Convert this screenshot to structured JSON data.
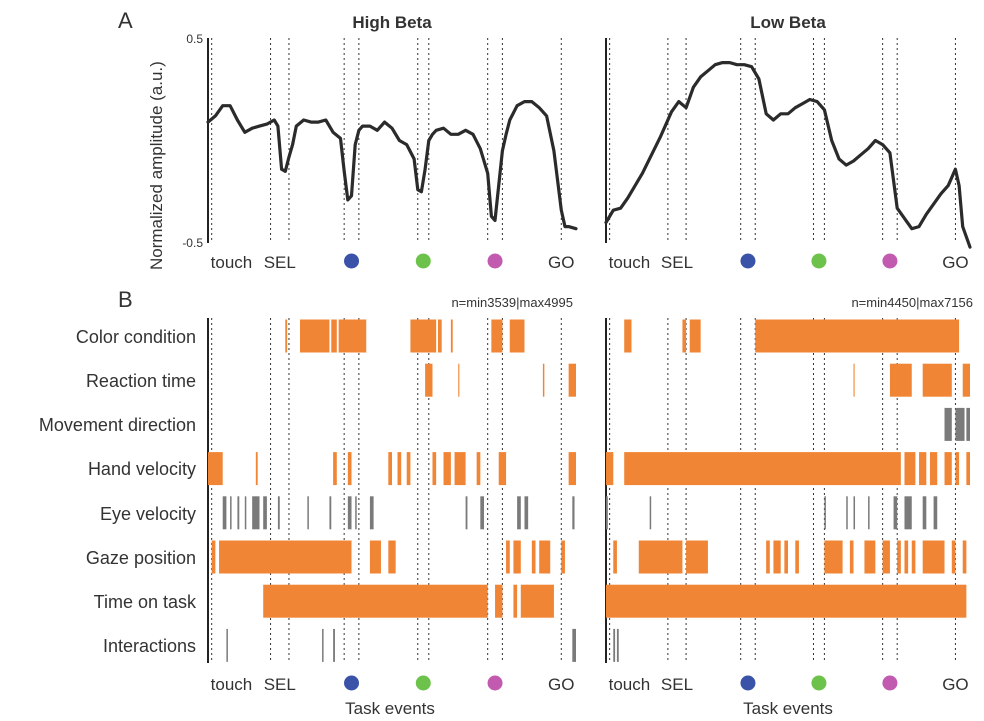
{
  "panel_a": {
    "letter": "A",
    "y_label": "Normalized amplitude (a.u.)",
    "y_ticks": [
      "0.5",
      "-0.5"
    ]
  },
  "panel_b": {
    "letter": "B",
    "x_label_left": "Task events",
    "x_label_right": "Task events"
  },
  "event_labels": [
    "touch",
    "SEL",
    "",
    "",
    "",
    "GO"
  ],
  "event_marker_colors": [
    "#3a52a8",
    "#6cc24a",
    "#c25bb0"
  ],
  "colors": {
    "line": "#2b2b2b",
    "significant": "#f08536",
    "gray": "#7a7a7a",
    "axis": "#222222",
    "guide": "#333333"
  },
  "chart_data": [
    {
      "type": "line",
      "title": "High Beta",
      "xlabel": "",
      "ylabel": "Normalized amplitude (a.u.)",
      "xlim": [
        0,
        100
      ],
      "ylim": [
        -0.5,
        0.5
      ],
      "event_lines": [
        1,
        17,
        22,
        37,
        41,
        57,
        60,
        76,
        80,
        96
      ],
      "x": [
        0,
        2,
        4,
        6,
        8,
        10,
        12,
        14,
        16,
        18,
        19,
        20,
        21,
        22,
        23,
        24,
        26,
        28,
        30,
        32,
        34,
        36,
        37,
        38,
        39,
        40,
        41,
        42,
        44,
        46,
        48,
        50,
        52,
        54,
        56,
        57,
        58,
        59,
        60,
        61,
        62,
        64,
        66,
        68,
        70,
        72,
        74,
        76,
        77,
        78,
        79,
        80,
        81,
        82,
        84,
        86,
        88,
        90,
        92,
        94,
        96,
        97,
        98,
        100
      ],
      "y": [
        0.09,
        0.12,
        0.17,
        0.17,
        0.1,
        0.04,
        0.06,
        0.07,
        0.08,
        0.1,
        0.07,
        -0.14,
        -0.15,
        -0.08,
        -0.02,
        0.07,
        0.1,
        0.09,
        0.09,
        0.1,
        0.04,
        0.01,
        -0.15,
        -0.29,
        -0.27,
        -0.02,
        0.05,
        0.07,
        0.07,
        0.05,
        0.09,
        0.06,
        0.0,
        -0.02,
        -0.09,
        -0.24,
        -0.25,
        -0.14,
        0.0,
        0.03,
        0.05,
        0.06,
        0.03,
        0.03,
        0.05,
        0.03,
        -0.04,
        -0.16,
        -0.37,
        -0.39,
        -0.22,
        -0.05,
        0.03,
        0.1,
        0.17,
        0.19,
        0.19,
        0.16,
        0.12,
        -0.05,
        -0.34,
        -0.42,
        -0.42,
        -0.43
      ]
    },
    {
      "type": "line",
      "title": "Low Beta",
      "xlabel": "",
      "ylabel": "",
      "xlim": [
        0,
        100
      ],
      "ylim": [
        -0.5,
        0.5
      ],
      "event_lines": [
        1,
        17,
        22,
        37,
        41,
        57,
        60,
        76,
        80,
        96
      ],
      "x": [
        0,
        2,
        4,
        6,
        10,
        15,
        18,
        20,
        22,
        24,
        26,
        28,
        30,
        32,
        34,
        36,
        38,
        40,
        42,
        44,
        46,
        48,
        50,
        52,
        54,
        56,
        58,
        60,
        62,
        64,
        66,
        68,
        70,
        72,
        74,
        76,
        78,
        80,
        82,
        84,
        86,
        88,
        90,
        92,
        94,
        96,
        97,
        98,
        100
      ],
      "y": [
        -0.4,
        -0.34,
        -0.33,
        -0.28,
        -0.16,
        0.02,
        0.14,
        0.19,
        0.16,
        0.26,
        0.31,
        0.34,
        0.37,
        0.38,
        0.38,
        0.37,
        0.37,
        0.36,
        0.3,
        0.13,
        0.1,
        0.13,
        0.13,
        0.16,
        0.18,
        0.2,
        0.19,
        0.15,
        0.0,
        -0.09,
        -0.12,
        -0.1,
        -0.07,
        -0.04,
        0.0,
        -0.02,
        -0.06,
        -0.33,
        -0.38,
        -0.43,
        -0.42,
        -0.36,
        -0.31,
        -0.26,
        -0.22,
        -0.14,
        -0.22,
        -0.42,
        -0.52
      ]
    },
    {
      "type": "raster",
      "title": "",
      "annotation": "n=min3539|max4995",
      "xlim": [
        0,
        100
      ],
      "xlabel": "Task events",
      "event_lines": [
        1,
        17,
        22,
        37,
        41,
        57,
        60,
        76,
        80,
        96
      ],
      "rows": [
        {
          "label": "Color condition",
          "orange": [
            [
              21,
              21.5
            ],
            [
              25,
              33
            ],
            [
              33.5,
              35
            ],
            [
              35.5,
              43
            ],
            [
              55,
              62
            ],
            [
              62.5,
              63.5
            ],
            [
              66,
              66.5
            ],
            [
              77,
              80
            ],
            [
              82,
              86
            ]
          ],
          "gray": []
        },
        {
          "label": "Reaction time",
          "orange": [
            [
              59,
              61
            ],
            [
              68,
              68.3
            ],
            [
              91,
              91.4
            ],
            [
              98,
              100
            ]
          ],
          "gray": []
        },
        {
          "label": "Movement direction",
          "orange": [],
          "gray": []
        },
        {
          "label": "Hand velocity",
          "orange": [
            [
              0,
              4
            ],
            [
              13,
              13.5
            ],
            [
              34,
              35
            ],
            [
              38,
              39
            ],
            [
              49,
              50
            ],
            [
              51.5,
              52.5
            ],
            [
              54,
              55
            ],
            [
              61,
              62
            ],
            [
              64,
              66
            ],
            [
              67,
              70
            ],
            [
              73,
              74
            ],
            [
              79,
              81
            ],
            [
              98,
              100
            ]
          ],
          "gray": []
        },
        {
          "label": "Eye velocity",
          "orange": [],
          "gray": [
            [
              4,
              5
            ],
            [
              6,
              6.4
            ],
            [
              8,
              8.5
            ],
            [
              10,
              10.4
            ],
            [
              12,
              14
            ],
            [
              15,
              16
            ],
            [
              19,
              19.5
            ],
            [
              27,
              27.4
            ],
            [
              33,
              33.5
            ],
            [
              38,
              39
            ],
            [
              40,
              40.4
            ],
            [
              44,
              45
            ],
            [
              70,
              70.5
            ],
            [
              74,
              75
            ],
            [
              84,
              85
            ],
            [
              86,
              87
            ],
            [
              99,
              99.6
            ]
          ]
        },
        {
          "label": "Gaze position",
          "orange": [
            [
              1,
              2
            ],
            [
              3,
              39
            ],
            [
              44,
              47
            ],
            [
              49,
              51
            ],
            [
              81,
              82
            ],
            [
              83,
              85
            ],
            [
              88,
              89
            ],
            [
              90,
              93
            ],
            [
              96,
              97
            ]
          ],
          "gray": []
        },
        {
          "label": "Time on task",
          "orange": [
            [
              15,
              76
            ],
            [
              78,
              80
            ],
            [
              83,
              84
            ],
            [
              85,
              94
            ]
          ],
          "gray": []
        },
        {
          "label": "Interactions",
          "orange": [],
          "gray": [
            [
              5,
              5.4
            ],
            [
              31,
              31.4
            ],
            [
              34,
              34.5
            ],
            [
              99,
              100
            ]
          ]
        }
      ]
    },
    {
      "type": "raster",
      "title": "",
      "annotation": "n=min4450|max7156",
      "xlim": [
        0,
        100
      ],
      "xlabel": "Task events",
      "event_lines": [
        1,
        17,
        22,
        37,
        41,
        57,
        60,
        76,
        80,
        96
      ],
      "rows": [
        {
          "label": "Color condition",
          "orange": [
            [
              5,
              7
            ],
            [
              21,
              22
            ],
            [
              23,
              26
            ],
            [
              41,
              97
            ]
          ],
          "gray": []
        },
        {
          "label": "Reaction time",
          "orange": [
            [
              68,
              68.3
            ],
            [
              78,
              84
            ],
            [
              87,
              95
            ],
            [
              98,
              100
            ]
          ],
          "gray": []
        },
        {
          "label": "Movement direction",
          "orange": [],
          "gray": [
            [
              93,
              95
            ],
            [
              96,
              98.5
            ],
            [
              99,
              100
            ]
          ]
        },
        {
          "label": "Hand velocity",
          "orange": [
            [
              0,
              2
            ],
            [
              5,
              81
            ],
            [
              82,
              85
            ],
            [
              86,
              88
            ],
            [
              89,
              91
            ],
            [
              93,
              95
            ],
            [
              96,
              97
            ],
            [
              99,
              100
            ]
          ],
          "gray": []
        },
        {
          "label": "Eye velocity",
          "orange": [],
          "gray": [
            [
              0,
              0.5
            ],
            [
              12,
              12.4
            ],
            [
              60,
              60.4
            ],
            [
              66,
              66.4
            ],
            [
              68,
              68.4
            ],
            [
              72,
              72.4
            ],
            [
              79,
              80
            ],
            [
              82,
              84
            ],
            [
              87,
              88
            ],
            [
              90,
              91
            ]
          ]
        },
        {
          "label": "Gaze position",
          "orange": [
            [
              2,
              3
            ],
            [
              9,
              21
            ],
            [
              22,
              28
            ],
            [
              44,
              45
            ],
            [
              46,
              48
            ],
            [
              49,
              50
            ],
            [
              52,
              53
            ],
            [
              60,
              65
            ],
            [
              67,
              68
            ],
            [
              71,
              74
            ],
            [
              76,
              78
            ],
            [
              80,
              81
            ],
            [
              82,
              83
            ],
            [
              84,
              85
            ],
            [
              87,
              93
            ],
            [
              95,
              96
            ],
            [
              98,
              99
            ]
          ],
          "gray": []
        },
        {
          "label": "Time on task",
          "orange": [
            [
              0,
              99
            ]
          ],
          "gray": []
        },
        {
          "label": "Interactions",
          "orange": [],
          "gray": [
            [
              2,
              2.5
            ],
            [
              3,
              3.5
            ]
          ]
        }
      ]
    }
  ]
}
